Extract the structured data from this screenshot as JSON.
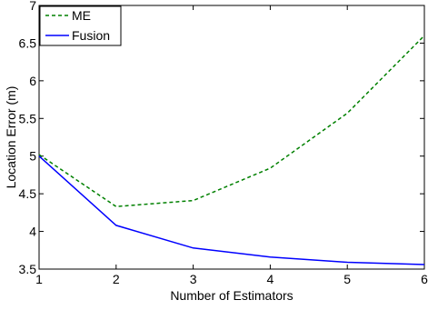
{
  "chart_data": {
    "type": "line",
    "x": [
      1,
      2,
      3,
      4,
      5,
      6
    ],
    "series": [
      {
        "name": "ME",
        "values": [
          5.02,
          4.33,
          4.41,
          4.84,
          5.57,
          6.6
        ],
        "color": "#008000",
        "line_style": "dashed"
      },
      {
        "name": "Fusion",
        "values": [
          5.0,
          4.08,
          3.78,
          3.66,
          3.59,
          3.56
        ],
        "color": "#0000ff",
        "line_style": "solid"
      }
    ],
    "xlabel": "Number of Estimators",
    "ylabel": "Location Error (m)",
    "xlim": [
      1,
      6
    ],
    "ylim": [
      3.5,
      7
    ],
    "xticks": [
      1,
      2,
      3,
      4,
      5,
      6
    ],
    "yticks": [
      3.5,
      4,
      4.5,
      5,
      5.5,
      6,
      6.5,
      7
    ],
    "xtick_labels": [
      "1",
      "2",
      "3",
      "4",
      "5",
      "6"
    ],
    "ytick_labels": [
      "3.5",
      "4",
      "4.5",
      "5",
      "5.5",
      "6",
      "6.5",
      "7"
    ],
    "grid": false,
    "legend_position": "top-left"
  }
}
